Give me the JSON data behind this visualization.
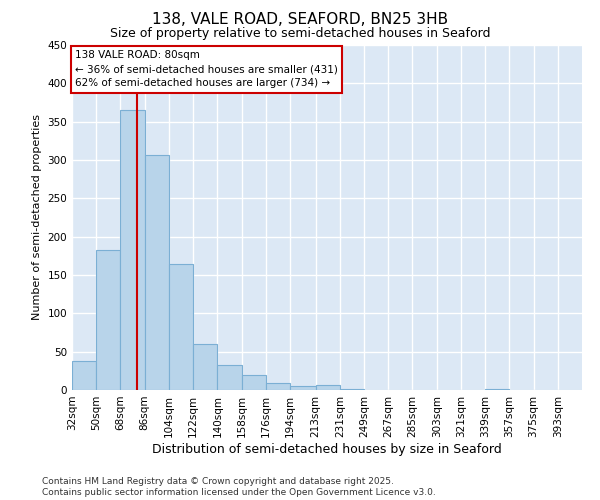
{
  "title1": "138, VALE ROAD, SEAFORD, BN25 3HB",
  "title2": "Size of property relative to semi-detached houses in Seaford",
  "xlabel": "Distribution of semi-detached houses by size in Seaford",
  "ylabel": "Number of semi-detached properties",
  "footnote1": "Contains HM Land Registry data © Crown copyright and database right 2025.",
  "footnote2": "Contains public sector information licensed under the Open Government Licence v3.0.",
  "annotation_title": "138 VALE ROAD: 80sqm",
  "annotation_line1": "← 36% of semi-detached houses are smaller (431)",
  "annotation_line2": "62% of semi-detached houses are larger (734) →",
  "bar_left_edges": [
    32,
    50,
    68,
    86,
    104,
    122,
    140,
    158,
    176,
    194,
    213,
    231,
    249,
    267,
    285,
    303,
    321,
    339,
    357,
    375,
    393
  ],
  "bar_widths": [
    18,
    18,
    18,
    18,
    18,
    18,
    18,
    18,
    18,
    19,
    18,
    18,
    18,
    18,
    18,
    18,
    18,
    18,
    18,
    18,
    18
  ],
  "bar_labels": [
    "32sqm",
    "50sqm",
    "68sqm",
    "86sqm",
    "104sqm",
    "122sqm",
    "140sqm",
    "158sqm",
    "176sqm",
    "194sqm",
    "213sqm",
    "231sqm",
    "249sqm",
    "267sqm",
    "285sqm",
    "303sqm",
    "321sqm",
    "339sqm",
    "357sqm",
    "375sqm",
    "393sqm"
  ],
  "bar_heights": [
    38,
    183,
    365,
    307,
    165,
    60,
    32,
    19,
    9,
    5,
    6,
    1,
    0,
    0,
    0,
    0,
    0,
    1,
    0,
    0,
    0
  ],
  "bar_color": "#b8d4ea",
  "bar_edge_color": "#7bafd4",
  "vline_color": "#cc0000",
  "vline_x": 80,
  "ylim": [
    0,
    450
  ],
  "yticks": [
    0,
    50,
    100,
    150,
    200,
    250,
    300,
    350,
    400,
    450
  ],
  "plot_bg_color": "#dce8f5",
  "fig_bg_color": "#ffffff",
  "grid_color": "#ffffff",
  "annotation_box_color": "#ffffff",
  "annotation_border_color": "#cc0000",
  "title1_fontsize": 11,
  "title2_fontsize": 9,
  "xlabel_fontsize": 9,
  "ylabel_fontsize": 8,
  "tick_fontsize": 7.5,
  "footnote_fontsize": 6.5
}
